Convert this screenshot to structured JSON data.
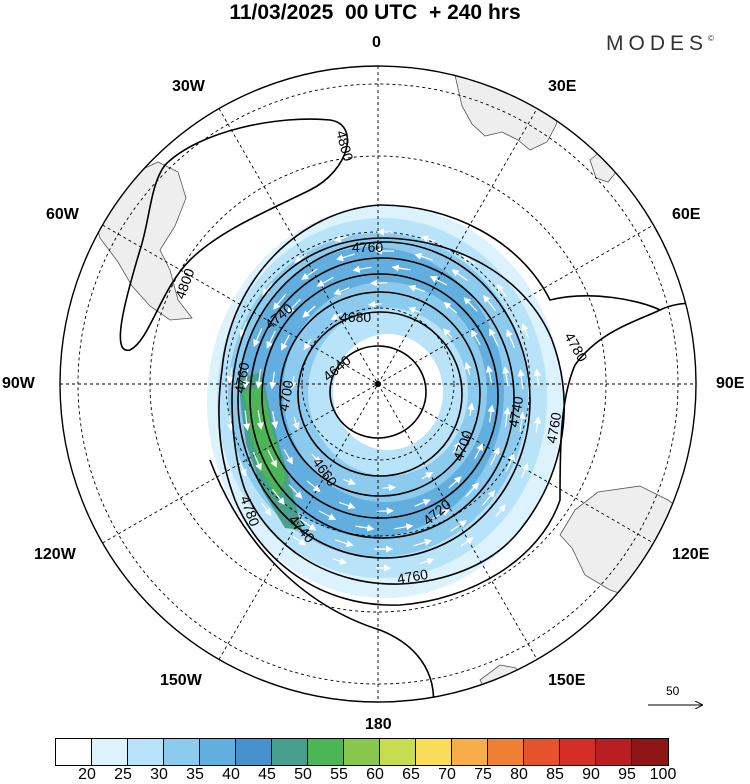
{
  "header": {
    "title": "11/03/2025  00 UTC  + 240 hrs",
    "brand": "MODES",
    "brand_mark": "©"
  },
  "map": {
    "projection": "south-polar-stereographic",
    "longitude_labels": [
      "0",
      "30E",
      "60E",
      "90E",
      "120E",
      "150E",
      "180",
      "150W",
      "120W",
      "90W",
      "60W",
      "30W"
    ],
    "contour_labels": [
      "4800",
      "4800",
      "4760",
      "4740",
      "4680",
      "4640",
      "4700",
      "4660",
      "4760",
      "4780",
      "4740",
      "4760",
      "4700",
      "4720",
      "4740",
      "4780",
      "4760"
    ],
    "contour_color": "#000000",
    "wind_vector_color": "#ffffff",
    "land_color": "#eeeeee",
    "reference_vector": "50"
  },
  "colorbar": {
    "labels": [
      "20",
      "25",
      "30",
      "35",
      "40",
      "45",
      "50",
      "55",
      "60",
      "65",
      "70",
      "75",
      "80",
      "85",
      "90",
      "95",
      "100"
    ],
    "colors": [
      "#ffffff",
      "#dcf2fc",
      "#b8e3f8",
      "#8ccaee",
      "#62aedf",
      "#4791cc",
      "#48a08c",
      "#4cb556",
      "#88c74d",
      "#c8dc52",
      "#f9dc5a",
      "#f6ad4a",
      "#ef7f34",
      "#e4532c",
      "#d42e27",
      "#b91e23",
      "#8f1616"
    ]
  }
}
